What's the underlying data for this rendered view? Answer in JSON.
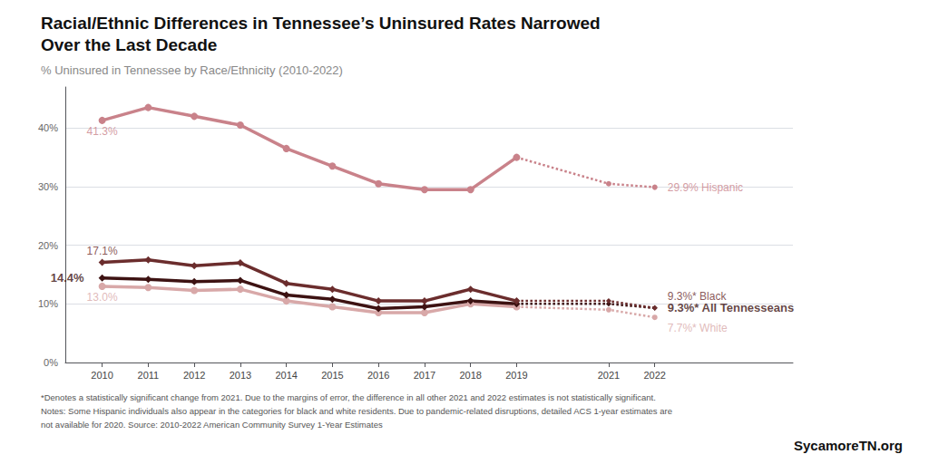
{
  "chart_data": {
    "type": "line",
    "title": "Racial/Ethnic Differences in Tennessee’s Uninsured Rates Narrowed\nOver the Last Decade",
    "subtitle": "% Uninsured in Tennessee by Race/Ethnicity (2010-2022)",
    "x": [
      2010,
      2011,
      2012,
      2013,
      2014,
      2015,
      2016,
      2017,
      2018,
      2019,
      2021,
      2022
    ],
    "xlim": [
      2009.2,
      2025.0
    ],
    "xticks": [
      2010,
      2011,
      2012,
      2013,
      2014,
      2015,
      2016,
      2017,
      2018,
      2019,
      2021,
      2022
    ],
    "ylim": [
      0,
      47
    ],
    "yticks": [
      {
        "value": 0,
        "label": "0%"
      },
      {
        "value": 10,
        "label": "10%"
      },
      {
        "value": 20,
        "label": "20%"
      },
      {
        "value": 30,
        "label": "30%"
      },
      {
        "value": 40,
        "label": "40%"
      }
    ],
    "grid": true,
    "series": [
      {
        "name": "White",
        "color": "#d8a8a8",
        "marker": "circle",
        "line_style": "solid",
        "values": [
          13.0,
          12.8,
          12.3,
          12.5,
          10.5,
          9.5,
          8.5,
          8.5,
          10.0,
          9.5,
          null,
          null
        ]
      },
      {
        "name": "White",
        "color": "#d8a8a8",
        "marker": "circle",
        "line_style": "dotted",
        "values": [
          null,
          null,
          null,
          null,
          null,
          null,
          null,
          null,
          null,
          9.5,
          9.0,
          7.7
        ]
      },
      {
        "name": "All Tennesseans",
        "color": "#3d1212",
        "marker": "diamond",
        "line_style": "solid",
        "values": [
          14.4,
          14.2,
          13.8,
          14.0,
          11.5,
          10.8,
          9.2,
          9.5,
          10.5,
          10.0,
          null,
          null
        ]
      },
      {
        "name": "All Tennesseans",
        "color": "#3d1212",
        "marker": "diamond",
        "line_style": "dotted",
        "values": [
          null,
          null,
          null,
          null,
          null,
          null,
          null,
          null,
          null,
          10.0,
          10.0,
          9.3
        ]
      },
      {
        "name": "Black",
        "color": "#6b2d2d",
        "marker": "diamond",
        "line_style": "solid",
        "values": [
          17.1,
          17.5,
          16.5,
          17.0,
          13.5,
          12.5,
          10.5,
          10.5,
          12.5,
          10.5,
          null,
          null
        ]
      },
      {
        "name": "Black",
        "color": "#6b2d2d",
        "marker": "diamond",
        "line_style": "dotted",
        "values": [
          null,
          null,
          null,
          null,
          null,
          null,
          null,
          null,
          null,
          10.5,
          10.5,
          9.3
        ]
      },
      {
        "name": "Hispanic",
        "color": "#c9828a",
        "marker": "circle",
        "line_style": "solid",
        "values": [
          41.3,
          43.5,
          42.0,
          40.5,
          36.5,
          33.5,
          30.5,
          29.5,
          29.5,
          35.0,
          null,
          null
        ]
      },
      {
        "name": "Hispanic",
        "color": "#c9828a",
        "marker": "circle",
        "line_style": "dotted",
        "values": [
          null,
          null,
          null,
          null,
          null,
          null,
          null,
          null,
          null,
          35.0,
          30.5,
          29.9
        ]
      }
    ],
    "annotations": [
      {
        "text": "41.3%",
        "x": 2010,
        "y": 41.3,
        "series": "Hispanic"
      },
      {
        "text": "17.1%",
        "x": 2010,
        "y": 17.1,
        "series": "Black"
      },
      {
        "text": "14.4%",
        "x": 2010,
        "y": 14.4,
        "series": "All Tennesseans"
      },
      {
        "text": "13.0%",
        "x": 2010,
        "y": 13.0,
        "series": "White"
      },
      {
        "text": "9.3%* Black",
        "x": 2022,
        "y": 9.3,
        "series": "Black"
      },
      {
        "text": "9.3%* All Tennesseans",
        "x": 2022,
        "y": 9.3,
        "series": "All Tennesseans"
      },
      {
        "text": "7.7%* White",
        "x": 2022,
        "y": 7.7,
        "series": "White"
      },
      {
        "text": "29.9% Hispanic",
        "x": 2022,
        "y": 29.9,
        "series": "Hispanic"
      }
    ],
    "footnotes": [
      "*Denotes a statistically significant change from 2021. Due to the margins of error, the difference in all other 2021 and 2022 estimates is not statistically significant.",
      "Notes: Some Hispanic individuals also appear in the categories for black and white residents. Due to pandemic-related disruptions, detailed ACS 1-year estimates are",
      "not available for 2020. Source: 2010-2022 American Community Survey 1-Year Estimates"
    ],
    "source": "SycamoreTN.org"
  }
}
